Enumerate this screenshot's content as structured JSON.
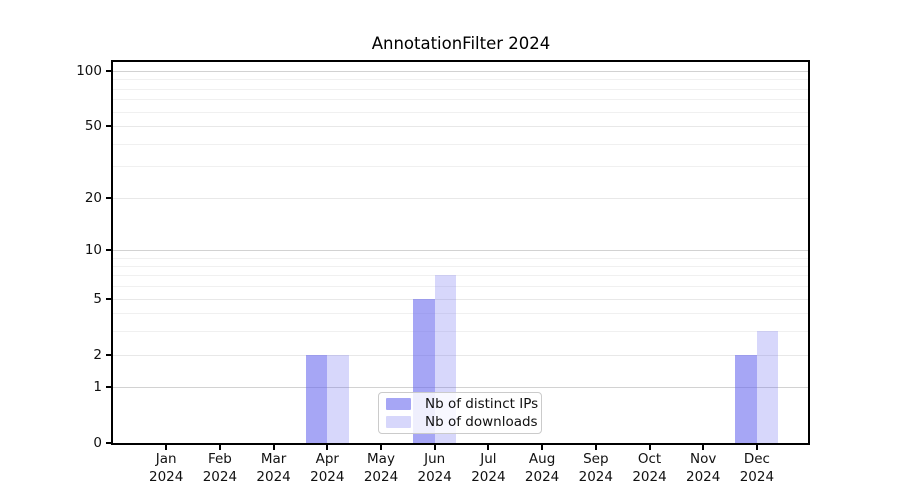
{
  "title": "AnnotationFilter 2024",
  "chart_data": {
    "type": "bar",
    "title": "AnnotationFilter 2024",
    "categories": [
      "Jan 2024",
      "Feb 2024",
      "Mar 2024",
      "Apr 2024",
      "May 2024",
      "Jun 2024",
      "Jul 2024",
      "Aug 2024",
      "Sep 2024",
      "Oct 2024",
      "Nov 2024",
      "Dec 2024"
    ],
    "series": [
      {
        "name": "Nb of distinct IPs",
        "color": "rgba(102,102,238,0.58)",
        "values": [
          0,
          0,
          0,
          2,
          0,
          5,
          0,
          0,
          0,
          0,
          0,
          2
        ]
      },
      {
        "name": "Nb of downloads",
        "color": "rgba(102,102,238,0.26)",
        "values": [
          0,
          0,
          0,
          2,
          0,
          7,
          0,
          0,
          0,
          0,
          0,
          3
        ]
      }
    ],
    "xlabel": "",
    "ylabel": "",
    "ylim": [
      0,
      100
    ],
    "yscale": "log1p",
    "yticks": [
      0,
      1,
      2,
      5,
      10,
      20,
      50,
      100
    ],
    "major_decades": [
      1,
      10,
      100
    ],
    "minor_ticks": [
      3,
      4,
      6,
      7,
      8,
      9,
      30,
      40,
      60,
      70,
      80,
      90
    ],
    "grid": true,
    "legend_position": "lower center",
    "colors": {
      "spine": "#000000",
      "grid_major": "#d2d2d2",
      "grid_labeled": "#e8e8e8",
      "grid_minor": "#f0f0f0"
    }
  }
}
